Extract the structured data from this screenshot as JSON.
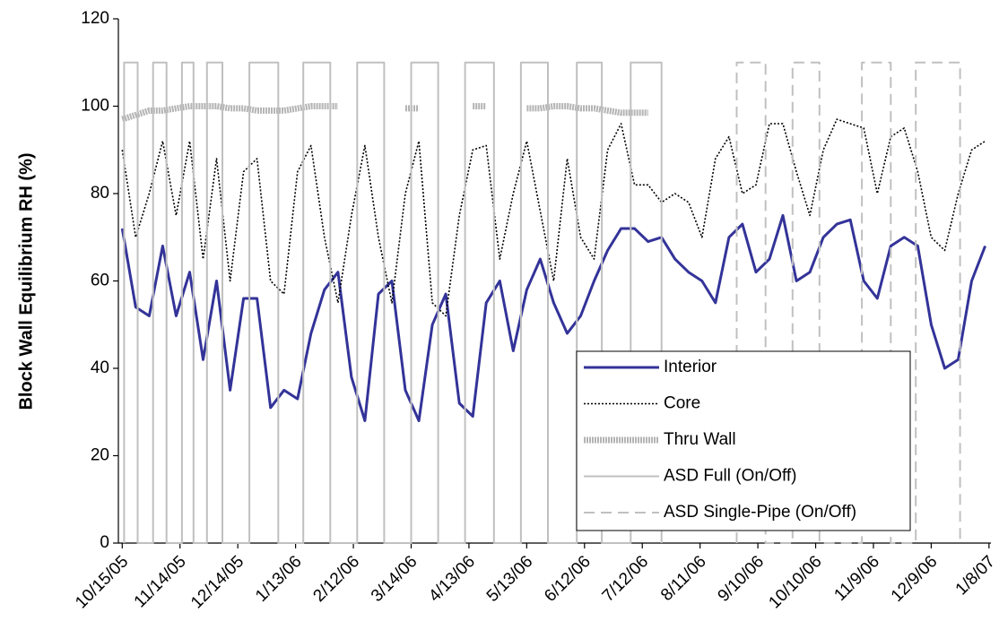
{
  "chart_data": {
    "type": "line",
    "y_label": "Block Wall Equilibrium RH (%)",
    "ylim": [
      0,
      120
    ],
    "yticks": [
      0,
      20,
      40,
      60,
      80,
      100,
      120
    ],
    "xlim": [
      "2005-10-13",
      "2007-01-09"
    ],
    "xticks": [
      {
        "value": "2005-10-15",
        "label": "10/15/05"
      },
      {
        "value": "2005-11-14",
        "label": "11/14/05"
      },
      {
        "value": "2005-12-14",
        "label": "12/14/05"
      },
      {
        "value": "2006-01-13",
        "label": "1/13/06"
      },
      {
        "value": "2006-02-12",
        "label": "2/12/06"
      },
      {
        "value": "2006-03-14",
        "label": "3/14/06"
      },
      {
        "value": "2006-04-13",
        "label": "4/13/06"
      },
      {
        "value": "2006-05-13",
        "label": "5/13/06"
      },
      {
        "value": "2006-06-12",
        "label": "6/12/06"
      },
      {
        "value": "2006-07-12",
        "label": "7/12/06"
      },
      {
        "value": "2006-08-11",
        "label": "8/11/06"
      },
      {
        "value": "2006-09-10",
        "label": "9/10/06"
      },
      {
        "value": "2006-10-10",
        "label": "10/10/06"
      },
      {
        "value": "2006-11-09",
        "label": "11/9/06"
      },
      {
        "value": "2006-12-09",
        "label": "12/9/06"
      },
      {
        "value": "2007-01-08",
        "label": "1/8/07"
      }
    ],
    "legend": "lower right",
    "x": [
      "2005-10-15",
      "2005-10-22",
      "2005-10-29",
      "2005-11-05",
      "2005-11-12",
      "2005-11-19",
      "2005-11-26",
      "2005-12-03",
      "2005-12-10",
      "2005-12-17",
      "2005-12-24",
      "2005-12-31",
      "2006-01-07",
      "2006-01-14",
      "2006-01-21",
      "2006-01-28",
      "2006-02-04",
      "2006-02-11",
      "2006-02-18",
      "2006-02-25",
      "2006-03-04",
      "2006-03-11",
      "2006-03-18",
      "2006-03-25",
      "2006-04-01",
      "2006-04-08",
      "2006-04-15",
      "2006-04-22",
      "2006-04-29",
      "2006-05-06",
      "2006-05-13",
      "2006-05-20",
      "2006-05-27",
      "2006-06-03",
      "2006-06-10",
      "2006-06-17",
      "2006-06-24",
      "2006-07-01",
      "2006-07-08",
      "2006-07-15",
      "2006-07-22",
      "2006-07-29",
      "2006-08-05",
      "2006-08-12",
      "2006-08-19",
      "2006-08-26",
      "2006-09-02",
      "2006-09-09",
      "2006-09-16",
      "2006-09-23",
      "2006-09-30",
      "2006-10-07",
      "2006-10-14",
      "2006-10-21",
      "2006-10-28",
      "2006-11-04",
      "2006-11-11",
      "2006-11-18",
      "2006-11-25",
      "2006-12-02",
      "2006-12-09",
      "2006-12-16",
      "2006-12-23",
      "2006-12-30",
      "2007-01-06"
    ],
    "series": [
      {
        "name": "Interior",
        "color": "#333399",
        "style": "solid",
        "width": 3,
        "values": [
          72,
          54,
          52,
          68,
          52,
          62,
          42,
          60,
          35,
          56,
          56,
          31,
          35,
          33,
          48,
          58,
          62,
          38,
          28,
          57,
          60,
          35,
          28,
          50,
          57,
          32,
          29,
          55,
          60,
          44,
          58,
          65,
          55,
          48,
          52,
          60,
          67,
          72,
          72,
          69,
          70,
          65,
          62,
          60,
          55,
          70,
          73,
          62,
          65,
          75,
          60,
          62,
          70,
          73,
          74,
          60,
          56,
          68,
          70,
          68,
          50,
          40,
          42,
          60,
          68
        ]
      },
      {
        "name": "Core",
        "color": "#000000",
        "style": "dotted",
        "width": 1.6,
        "values": [
          90,
          70,
          80,
          92,
          75,
          92,
          65,
          88,
          60,
          85,
          88,
          60,
          57,
          85,
          91,
          70,
          55,
          75,
          91,
          70,
          55,
          80,
          92,
          55,
          52,
          75,
          90,
          91,
          65,
          80,
          92,
          76,
          60,
          88,
          70,
          65,
          90,
          96,
          82,
          82,
          78,
          80,
          78,
          70,
          88,
          93,
          80,
          82,
          96,
          96,
          85,
          75,
          90,
          97,
          96,
          95,
          80,
          93,
          95,
          85,
          70,
          67,
          80,
          90,
          92
        ]
      },
      {
        "name": "Thru Wall",
        "color": "#b4b4b4",
        "style": "thick",
        "width": 7,
        "values": [
          97,
          98,
          99,
          99,
          99.5,
          100,
          100,
          100,
          99.5,
          99.5,
          99,
          99,
          99,
          99.5,
          100,
          100,
          100,
          null,
          null,
          null,
          null,
          99.5,
          99.5,
          null,
          null,
          null,
          100,
          100,
          null,
          null,
          99.5,
          99.5,
          100,
          100,
          99.5,
          99.5,
          99,
          98.5,
          98.5,
          98.5,
          null,
          null,
          null,
          null,
          null,
          null,
          null,
          null,
          null,
          null,
          null,
          null,
          null,
          null,
          null,
          null,
          null,
          null,
          null,
          null,
          null,
          null,
          null,
          null,
          null
        ]
      },
      {
        "name": "ASD Full (On/Off)",
        "color": "#c0c0c0",
        "style": "solid",
        "width": 2,
        "x": [
          "2005-10-16",
          "2005-10-16",
          "2005-10-23",
          "2005-10-23",
          "2005-10-31",
          "2005-10-31",
          "2005-11-07",
          "2005-11-07",
          "2005-11-15",
          "2005-11-15",
          "2005-11-21",
          "2005-11-21",
          "2005-11-28",
          "2005-11-28",
          "2005-12-06",
          "2005-12-06",
          "2005-12-20",
          "2005-12-20",
          "2006-01-04",
          "2006-01-04",
          "2006-01-17",
          "2006-01-17",
          "2006-01-31",
          "2006-01-31",
          "2006-02-14",
          "2006-02-14",
          "2006-02-28",
          "2006-02-28",
          "2006-03-14",
          "2006-03-14",
          "2006-03-28",
          "2006-03-28",
          "2006-04-11",
          "2006-04-11",
          "2006-04-26",
          "2006-04-26",
          "2006-05-10",
          "2006-05-10",
          "2006-05-24",
          "2006-05-24",
          "2006-06-08",
          "2006-06-08",
          "2006-06-21",
          "2006-06-21",
          "2006-07-06",
          "2006-07-06",
          "2006-07-22",
          "2006-07-22"
        ],
        "values": [
          0,
          110,
          110,
          0,
          0,
          110,
          110,
          0,
          0,
          110,
          110,
          0,
          0,
          110,
          110,
          0,
          0,
          110,
          110,
          0,
          0,
          110,
          110,
          0,
          0,
          110,
          110,
          0,
          0,
          110,
          110,
          0,
          0,
          110,
          110,
          0,
          0,
          110,
          110,
          0,
          0,
          110,
          110,
          0,
          0,
          110,
          110,
          0
        ]
      },
      {
        "name": "ASD Single-Pipe (On/Off)",
        "color": "#c0c0c0",
        "style": "dashed",
        "width": 2,
        "x": [
          "2006-08-30",
          "2006-08-30",
          "2006-09-14",
          "2006-09-14",
          "2006-09-28",
          "2006-09-28",
          "2006-10-12",
          "2006-10-12",
          "2006-11-03",
          "2006-11-03",
          "2006-11-18",
          "2006-11-18",
          "2006-12-01",
          "2006-12-01",
          "2006-12-24",
          "2006-12-24"
        ],
        "values": [
          0,
          110,
          110,
          0,
          0,
          110,
          110,
          0,
          0,
          110,
          110,
          0,
          0,
          110,
          110,
          0
        ]
      }
    ]
  }
}
